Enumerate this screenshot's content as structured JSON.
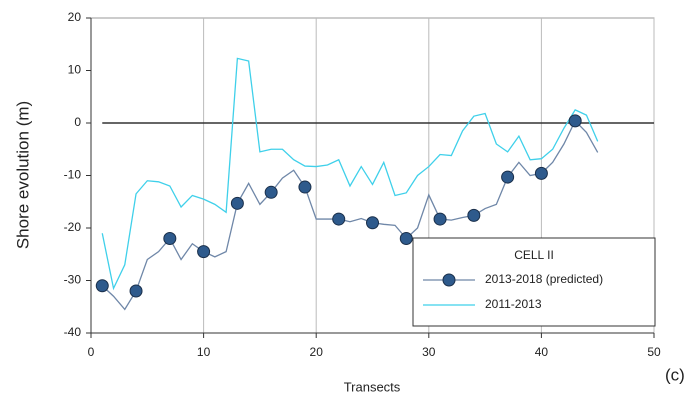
{
  "chart_data": {
    "type": "line",
    "y_label": "Shore evolution (m)",
    "x_label": "Transects",
    "panel_label": "(c)",
    "legend_title": "CELL II",
    "x": [
      1,
      2,
      3,
      4,
      5,
      6,
      7,
      8,
      9,
      10,
      11,
      12,
      13,
      14,
      15,
      16,
      17,
      18,
      19,
      20,
      21,
      22,
      23,
      24,
      25,
      26,
      27,
      28,
      29,
      30,
      31,
      32,
      33,
      34,
      35,
      36,
      37,
      38,
      39,
      40,
      41,
      42,
      43,
      44,
      45
    ],
    "series": [
      {
        "name": "2013-2018 (predicted)",
        "color": "#6f87a8",
        "marker_color": "#2e5a8c",
        "marker_every": 3,
        "values": [
          -31,
          -33,
          -35.5,
          -32,
          -26,
          -24.5,
          -22,
          -26,
          -23,
          -24.5,
          -25.5,
          -24.5,
          -15.3,
          -11.5,
          -15.5,
          -13.2,
          -10.5,
          -9,
          -12.2,
          -18.3,
          -18.3,
          -18.3,
          -18.8,
          -18.2,
          -19,
          -19.3,
          -19.5,
          -22,
          -20,
          -13.7,
          -18.3,
          -18.5,
          -18,
          -17.6,
          -16.3,
          -15.5,
          -10.3,
          -7.5,
          -10,
          -9.6,
          -7.5,
          -4,
          0.4,
          -1.8,
          -5.6
        ]
      },
      {
        "name": "2011-2013",
        "color": "#3fd0ea",
        "values": [
          -21,
          -31.5,
          -27,
          -13.5,
          -11,
          -11.2,
          -12,
          -16,
          -13.8,
          -14.5,
          -15.5,
          -17,
          12.3,
          11.8,
          -5.5,
          -5,
          -5,
          -7,
          -8.2,
          -8.3,
          -8,
          -7,
          -12,
          -8.3,
          -11.7,
          -7.5,
          -13.8,
          -13.3,
          -10,
          -8.3,
          -6,
          -6.2,
          -1.5,
          1.3,
          1.8,
          -4,
          -5.5,
          -2.5,
          -7,
          -6.8,
          -5,
          -1,
          2.5,
          1.5,
          -3.5
        ]
      }
    ],
    "xlim": [
      0,
      50
    ],
    "xticks": [
      0,
      10,
      20,
      30,
      40,
      50
    ],
    "ylim": [
      -40,
      20
    ],
    "yticks": [
      -40,
      -30,
      -20,
      -10,
      0,
      10,
      20
    ],
    "grid": "x",
    "hline": 0,
    "legend": "lower right"
  }
}
